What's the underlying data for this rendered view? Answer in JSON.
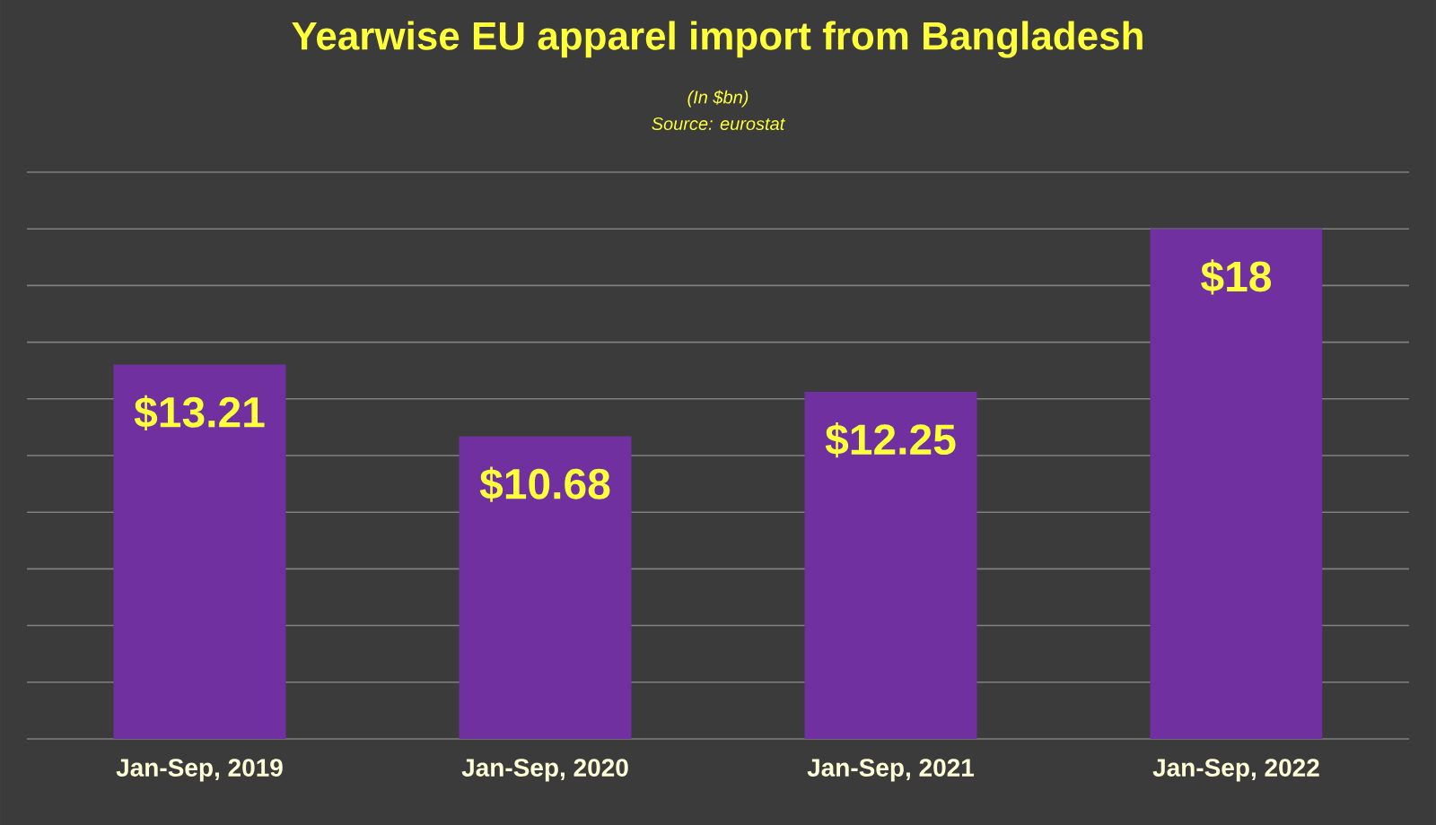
{
  "chart_data": {
    "type": "bar",
    "title": "Yearwise EU apparel import from Bangladesh",
    "subtitle": "(In $bn)",
    "annotations": [
      "Source: eurostat"
    ],
    "categories": [
      "Jan-Sep, 2019",
      "Jan-Sep, 2020",
      "Jan-Sep, 2021",
      "Jan-Sep, 2022"
    ],
    "values": [
      13.21,
      10.68,
      12.25,
      18
    ],
    "value_labels": [
      "$13.21",
      "$10.68",
      "$12.25",
      "$18"
    ],
    "color": "#7030a0",
    "ylim": [
      0,
      20
    ],
    "yticks": [
      {
        "value": 0,
        "label": null
      },
      {
        "value": 2,
        "label": null
      },
      {
        "value": 4,
        "label": null
      },
      {
        "value": 6,
        "label": null
      },
      {
        "value": 8,
        "label": null
      },
      {
        "value": 10,
        "label": null
      },
      {
        "value": 12,
        "label": null
      },
      {
        "value": 14,
        "label": null
      },
      {
        "value": 16,
        "label": null
      },
      {
        "value": 18,
        "label": null
      },
      {
        "value": 20,
        "label": null
      }
    ],
    "grid": "y",
    "tick_labels": "x"
  }
}
